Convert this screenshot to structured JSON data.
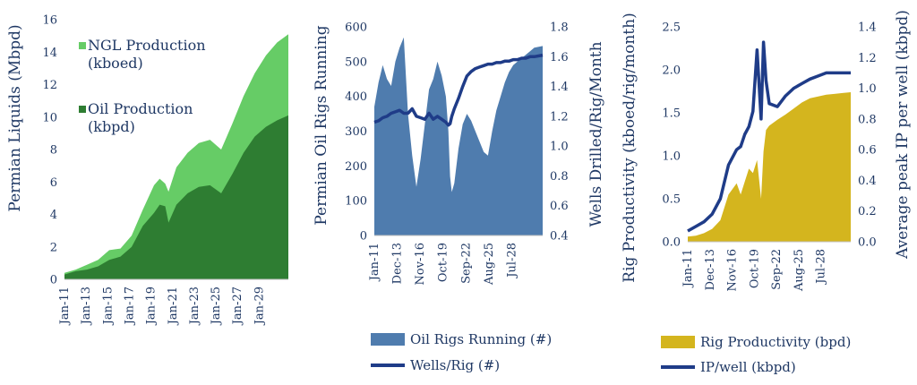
{
  "chart_data": [
    {
      "type": "area",
      "title": "",
      "ylabel": "Permian Liquids  (Mbpd)",
      "xlabel": "",
      "ylim": [
        0,
        16
      ],
      "yticks": [
        0,
        2,
        4,
        6,
        8,
        10,
        12,
        14,
        16
      ],
      "xlim": [
        2011,
        2031
      ],
      "x_tick_labels": [
        "Jan-11",
        "Jan-13",
        "Jan-15",
        "Jan-17",
        "Jan-19",
        "Jan-21",
        "Jan-23",
        "Jan-25",
        "Jan-27",
        "Jan-29"
      ],
      "x": [
        2011,
        2012,
        2013,
        2014,
        2015,
        2016,
        2017,
        2018,
        2019,
        2019.5,
        2020,
        2020.3,
        2021,
        2022,
        2023,
        2024,
        2025,
        2026,
        2027,
        2028,
        2029,
        2030,
        2031
      ],
      "series": [
        {
          "name": "Oil Production\n(kbpd)",
          "color": "#2e7d32",
          "values": [
            0.3,
            0.5,
            0.6,
            0.8,
            1.2,
            1.4,
            2.0,
            3.3,
            4.1,
            4.6,
            4.5,
            3.5,
            4.6,
            5.3,
            5.7,
            5.8,
            5.3,
            6.5,
            7.8,
            8.8,
            9.4,
            9.8,
            10.1
          ]
        },
        {
          "name": "NGL Production\n(kboed)",
          "color": "#66cc66",
          "values": [
            0.4,
            0.6,
            0.9,
            1.2,
            1.8,
            1.9,
            2.7,
            4.3,
            5.8,
            6.2,
            5.9,
            5.4,
            6.9,
            7.8,
            8.4,
            8.6,
            8.0,
            9.6,
            11.3,
            12.7,
            13.8,
            14.6,
            15.1
          ]
        }
      ]
    },
    {
      "type": "area",
      "ylabel": "Permian Oil Rigs Running",
      "y2label": "Wells Drilled/Rig/Month",
      "ylim": [
        0,
        600
      ],
      "yticks": [
        0,
        100,
        200,
        300,
        400,
        500,
        600
      ],
      "y2lim": [
        0.4,
        1.8
      ],
      "y2ticks": [
        0.4,
        0.6,
        0.8,
        1.0,
        1.2,
        1.4,
        1.6,
        1.8
      ],
      "xlim": [
        2011,
        2031
      ],
      "x_tick_labels": [
        "Jan-11",
        "Dec-13",
        "Nov-16",
        "Oct-19",
        "Sep-22",
        "Aug-25",
        "Jul-28"
      ],
      "x": [
        2011,
        2011.5,
        2012,
        2012.5,
        2013,
        2013.5,
        2014,
        2014.5,
        2015,
        2015.5,
        2016,
        2016.5,
        2017,
        2017.5,
        2018,
        2018.5,
        2019,
        2019.5,
        2019.8,
        2020,
        2020.2,
        2020.5,
        2021,
        2021.5,
        2022,
        2022.5,
        2023,
        2023.5,
        2024,
        2024.5,
        2025,
        2025.5,
        2026,
        2026.5,
        2027,
        2027.5,
        2028,
        2028.5,
        2029,
        2029.5,
        2030,
        2031
      ],
      "series": [
        {
          "name": "Oil Rigs Running (#)",
          "color": "#4f7cae",
          "values": [
            370,
            440,
            490,
            450,
            430,
            500,
            540,
            570,
            350,
            230,
            140,
            220,
            320,
            420,
            450,
            500,
            460,
            400,
            300,
            170,
            125,
            150,
            250,
            320,
            350,
            330,
            300,
            270,
            240,
            230,
            300,
            360,
            400,
            440,
            470,
            490,
            500,
            510,
            520,
            530,
            540,
            545
          ]
        },
        {
          "name": "Wells/Rig (#)",
          "color": "#1f3c88",
          "axis": "secondary",
          "values": [
            1.16,
            1.17,
            1.19,
            1.2,
            1.22,
            1.23,
            1.24,
            1.22,
            1.22,
            1.25,
            1.2,
            1.19,
            1.18,
            1.22,
            1.18,
            1.2,
            1.18,
            1.16,
            1.14,
            1.15,
            1.2,
            1.25,
            1.32,
            1.4,
            1.47,
            1.5,
            1.52,
            1.53,
            1.54,
            1.55,
            1.55,
            1.56,
            1.56,
            1.57,
            1.57,
            1.58,
            1.58,
            1.59,
            1.59,
            1.6,
            1.6,
            1.61
          ]
        }
      ]
    },
    {
      "type": "area",
      "ylabel": "Rig Productivity (kboed/rig/month)",
      "y2label": "Average peak IP per well (kbpd)",
      "ylim": [
        0,
        2.5
      ],
      "yticks": [
        0.0,
        0.5,
        1.0,
        1.5,
        2.0,
        2.5
      ],
      "y2lim": [
        0,
        1.4
      ],
      "y2ticks": [
        0.0,
        0.2,
        0.4,
        0.6,
        0.8,
        1.0,
        1.2,
        1.4
      ],
      "xlim": [
        2011,
        2031
      ],
      "x_tick_labels": [
        "Jan-11",
        "Dec-13",
        "Nov-16",
        "Oct-19",
        "Sep-22",
        "Aug-25",
        "Jul-28"
      ],
      "x": [
        2011,
        2012,
        2013,
        2014,
        2015,
        2016,
        2017,
        2017.5,
        2018,
        2018.5,
        2019,
        2019.5,
        2020,
        2020.3,
        2020.6,
        2021,
        2022,
        2023,
        2024,
        2025,
        2026,
        2027,
        2028,
        2029,
        2030,
        2031
      ],
      "series": [
        {
          "name": "Rig Productivity (bpd)",
          "color": "#d4b51e",
          "values": [
            0.06,
            0.07,
            0.1,
            0.15,
            0.25,
            0.55,
            0.68,
            0.55,
            0.7,
            0.85,
            0.8,
            0.95,
            0.5,
            1.05,
            1.3,
            1.35,
            1.42,
            1.48,
            1.55,
            1.62,
            1.67,
            1.69,
            1.71,
            1.72,
            1.73,
            1.74
          ]
        },
        {
          "name": "IP/well (kbpd)",
          "color": "#1f3c88",
          "axis": "secondary",
          "values": [
            0.07,
            0.1,
            0.13,
            0.18,
            0.28,
            0.5,
            0.6,
            0.62,
            0.7,
            0.75,
            0.85,
            1.25,
            0.8,
            1.3,
            1.05,
            0.9,
            0.88,
            0.95,
            1.0,
            1.03,
            1.06,
            1.08,
            1.1,
            1.1,
            1.1,
            1.1
          ]
        }
      ]
    }
  ]
}
